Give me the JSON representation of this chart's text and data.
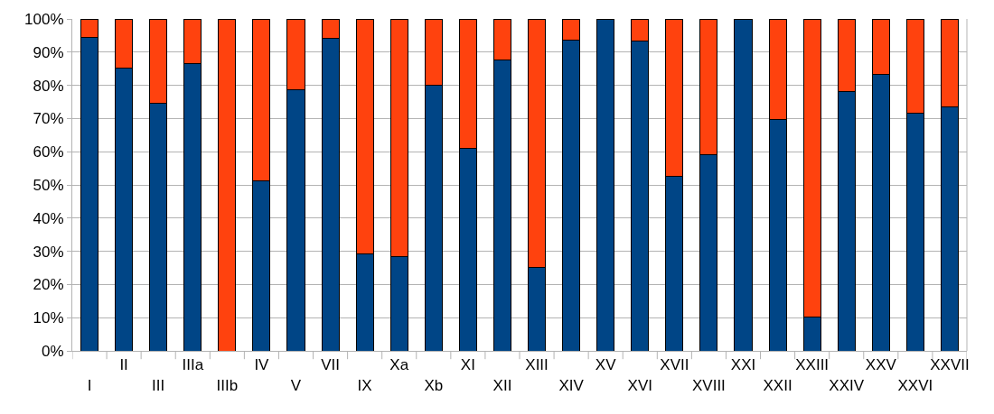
{
  "chart_data": {
    "type": "bar",
    "stacked": true,
    "categories": [
      "I",
      "II",
      "III",
      "IIIa",
      "IIIb",
      "IV",
      "V",
      "VII",
      "IX",
      "Xa",
      "Xb",
      "XI",
      "XII",
      "XIII",
      "XIV",
      "XV",
      "XVI",
      "XVII",
      "XVIII",
      "XXI",
      "XXII",
      "XXIII",
      "XXIV",
      "XXV",
      "XXVI",
      "XXVII"
    ],
    "series": [
      {
        "color": "#004586",
        "values": [
          94.4,
          85.1,
          74.7,
          86.5,
          0,
          51.3,
          78.6,
          94.1,
          29.2,
          28.5,
          80.0,
          61.1,
          87.7,
          25.1,
          93.7,
          100,
          93.3,
          52.7,
          59.1,
          100,
          69.7,
          10.1,
          78.1,
          83.4,
          71.6,
          73.5
        ]
      },
      {
        "color": "#ff420e",
        "values": [
          5.6,
          14.9,
          25.3,
          13.5,
          100,
          48.7,
          21.4,
          5.9,
          70.8,
          71.5,
          20.0,
          38.9,
          12.3,
          74.9,
          6.3,
          0,
          6.7,
          47.3,
          40.9,
          0,
          30.3,
          89.9,
          21.9,
          16.6,
          28.4,
          26.5
        ]
      }
    ],
    "ylim": [
      0,
      100
    ],
    "yticks": [
      {
        "value": 0,
        "label": "0%"
      },
      {
        "value": 10,
        "label": "10%"
      },
      {
        "value": 20,
        "label": "20%"
      },
      {
        "value": 30,
        "label": "30%"
      },
      {
        "value": 40,
        "label": "40%"
      },
      {
        "value": 50,
        "label": "50%"
      },
      {
        "value": 60,
        "label": "60%"
      },
      {
        "value": 70,
        "label": "70%"
      },
      {
        "value": 80,
        "label": "80%"
      },
      {
        "value": 90,
        "label": "90%"
      },
      {
        "value": 100,
        "label": "100%"
      }
    ],
    "grid": "y"
  }
}
